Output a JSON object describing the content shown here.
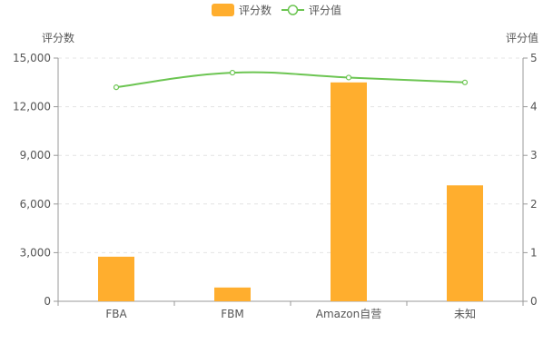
{
  "chart_data": {
    "type": "bar",
    "categories": [
      "FBA",
      "FBM",
      "Amazon自营",
      "未知"
    ],
    "series": [
      {
        "name": "评分数",
        "type": "bar",
        "axis": "left",
        "values": [
          2750,
          850,
          13500,
          7150
        ],
        "color": "#FFAE2E"
      },
      {
        "name": "评分值",
        "type": "line",
        "axis": "right",
        "values": [
          4.4,
          4.7,
          4.6,
          4.5
        ],
        "color": "#6CC552"
      }
    ],
    "left_axis": {
      "label": "评分数",
      "ylim": [
        0,
        15000
      ],
      "ticks": [
        0,
        3000,
        6000,
        9000,
        12000,
        15000
      ],
      "tick_labels": [
        "0",
        "3,000",
        "6,000",
        "9,000",
        "12,000",
        "15,000"
      ]
    },
    "right_axis": {
      "label": "评分值",
      "ylim": [
        0,
        5
      ],
      "ticks": [
        0,
        1,
        2,
        3,
        4,
        5
      ],
      "tick_labels": [
        "0",
        "1",
        "2",
        "3",
        "4",
        "5"
      ]
    },
    "legend": {
      "placement": "top-center",
      "entries": [
        "评分数",
        "评分值"
      ]
    },
    "grid": "dashed-horizontal",
    "colors": {
      "axis": "#999999",
      "grid": "#e4e4e4",
      "text": "#555555",
      "marker_fill": "#ffffff"
    }
  }
}
